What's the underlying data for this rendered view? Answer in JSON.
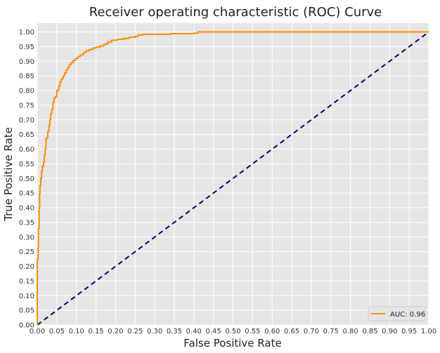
{
  "chart_data": {
    "type": "line",
    "title": "Receiver operating characteristic (ROC) Curve",
    "xlabel": "False Positive Rate",
    "ylabel": "True Positive Rate",
    "xlim": [
      0,
      1
    ],
    "ylim": [
      0,
      1.03
    ],
    "grid": true,
    "legend_position": "bottom-right",
    "xticks": [
      "0.00",
      "0.05",
      "0.10",
      "0.15",
      "0.20",
      "0.25",
      "0.30",
      "0.35",
      "0.40",
      "0.45",
      "0.50",
      "0.55",
      "0.60",
      "0.65",
      "0.70",
      "0.75",
      "0.80",
      "0.85",
      "0.90",
      "0.95",
      "1.00"
    ],
    "yticks": [
      "0.00",
      "0.05",
      "0.10",
      "0.15",
      "0.20",
      "0.25",
      "0.30",
      "0.35",
      "0.40",
      "0.45",
      "0.50",
      "0.55",
      "0.60",
      "0.65",
      "0.70",
      "0.75",
      "0.80",
      "0.85",
      "0.90",
      "0.95",
      "1.00"
    ],
    "series": [
      {
        "name": "AUC: 0.96",
        "color": "#ff8c00",
        "style": "solid",
        "points": [
          [
            0.0,
            0.0
          ],
          [
            0.0,
            0.225
          ],
          [
            0.002,
            0.265
          ],
          [
            0.003,
            0.33
          ],
          [
            0.005,
            0.4
          ],
          [
            0.006,
            0.45
          ],
          [
            0.007,
            0.475
          ],
          [
            0.009,
            0.5
          ],
          [
            0.011,
            0.525
          ],
          [
            0.013,
            0.54
          ],
          [
            0.016,
            0.555
          ],
          [
            0.018,
            0.58
          ],
          [
            0.02,
            0.6
          ],
          [
            0.022,
            0.635
          ],
          [
            0.025,
            0.64
          ],
          [
            0.027,
            0.66
          ],
          [
            0.03,
            0.68
          ],
          [
            0.032,
            0.7
          ],
          [
            0.034,
            0.72
          ],
          [
            0.037,
            0.735
          ],
          [
            0.04,
            0.76
          ],
          [
            0.043,
            0.775
          ],
          [
            0.047,
            0.78
          ],
          [
            0.05,
            0.8
          ],
          [
            0.055,
            0.815
          ],
          [
            0.058,
            0.83
          ],
          [
            0.062,
            0.84
          ],
          [
            0.066,
            0.85
          ],
          [
            0.07,
            0.86
          ],
          [
            0.074,
            0.87
          ],
          [
            0.078,
            0.88
          ],
          [
            0.082,
            0.888
          ],
          [
            0.086,
            0.895
          ],
          [
            0.092,
            0.903
          ],
          [
            0.098,
            0.91
          ],
          [
            0.104,
            0.916
          ],
          [
            0.11,
            0.922
          ],
          [
            0.118,
            0.93
          ],
          [
            0.125,
            0.936
          ],
          [
            0.133,
            0.94
          ],
          [
            0.142,
            0.945
          ],
          [
            0.15,
            0.948
          ],
          [
            0.16,
            0.952
          ],
          [
            0.17,
            0.958
          ],
          [
            0.18,
            0.966
          ],
          [
            0.19,
            0.972
          ],
          [
            0.205,
            0.975
          ],
          [
            0.22,
            0.978
          ],
          [
            0.235,
            0.982
          ],
          [
            0.25,
            0.985
          ],
          [
            0.258,
            0.99
          ],
          [
            0.27,
            0.992
          ],
          [
            0.3,
            0.992
          ],
          [
            0.34,
            0.994
          ],
          [
            0.4,
            0.996
          ],
          [
            0.41,
            1.0
          ],
          [
            0.6,
            1.0
          ],
          [
            0.8,
            1.0
          ],
          [
            1.0,
            1.0
          ]
        ]
      },
      {
        "name": "",
        "color": "#000080",
        "style": "dashed",
        "points": [
          [
            0,
            0
          ],
          [
            1,
            1
          ]
        ]
      }
    ]
  },
  "colors": {
    "plot_background": "#e5e5e5",
    "grid": "#ffffff",
    "legend_background": "#e5e5e5",
    "legend_border": "#cccccc"
  }
}
